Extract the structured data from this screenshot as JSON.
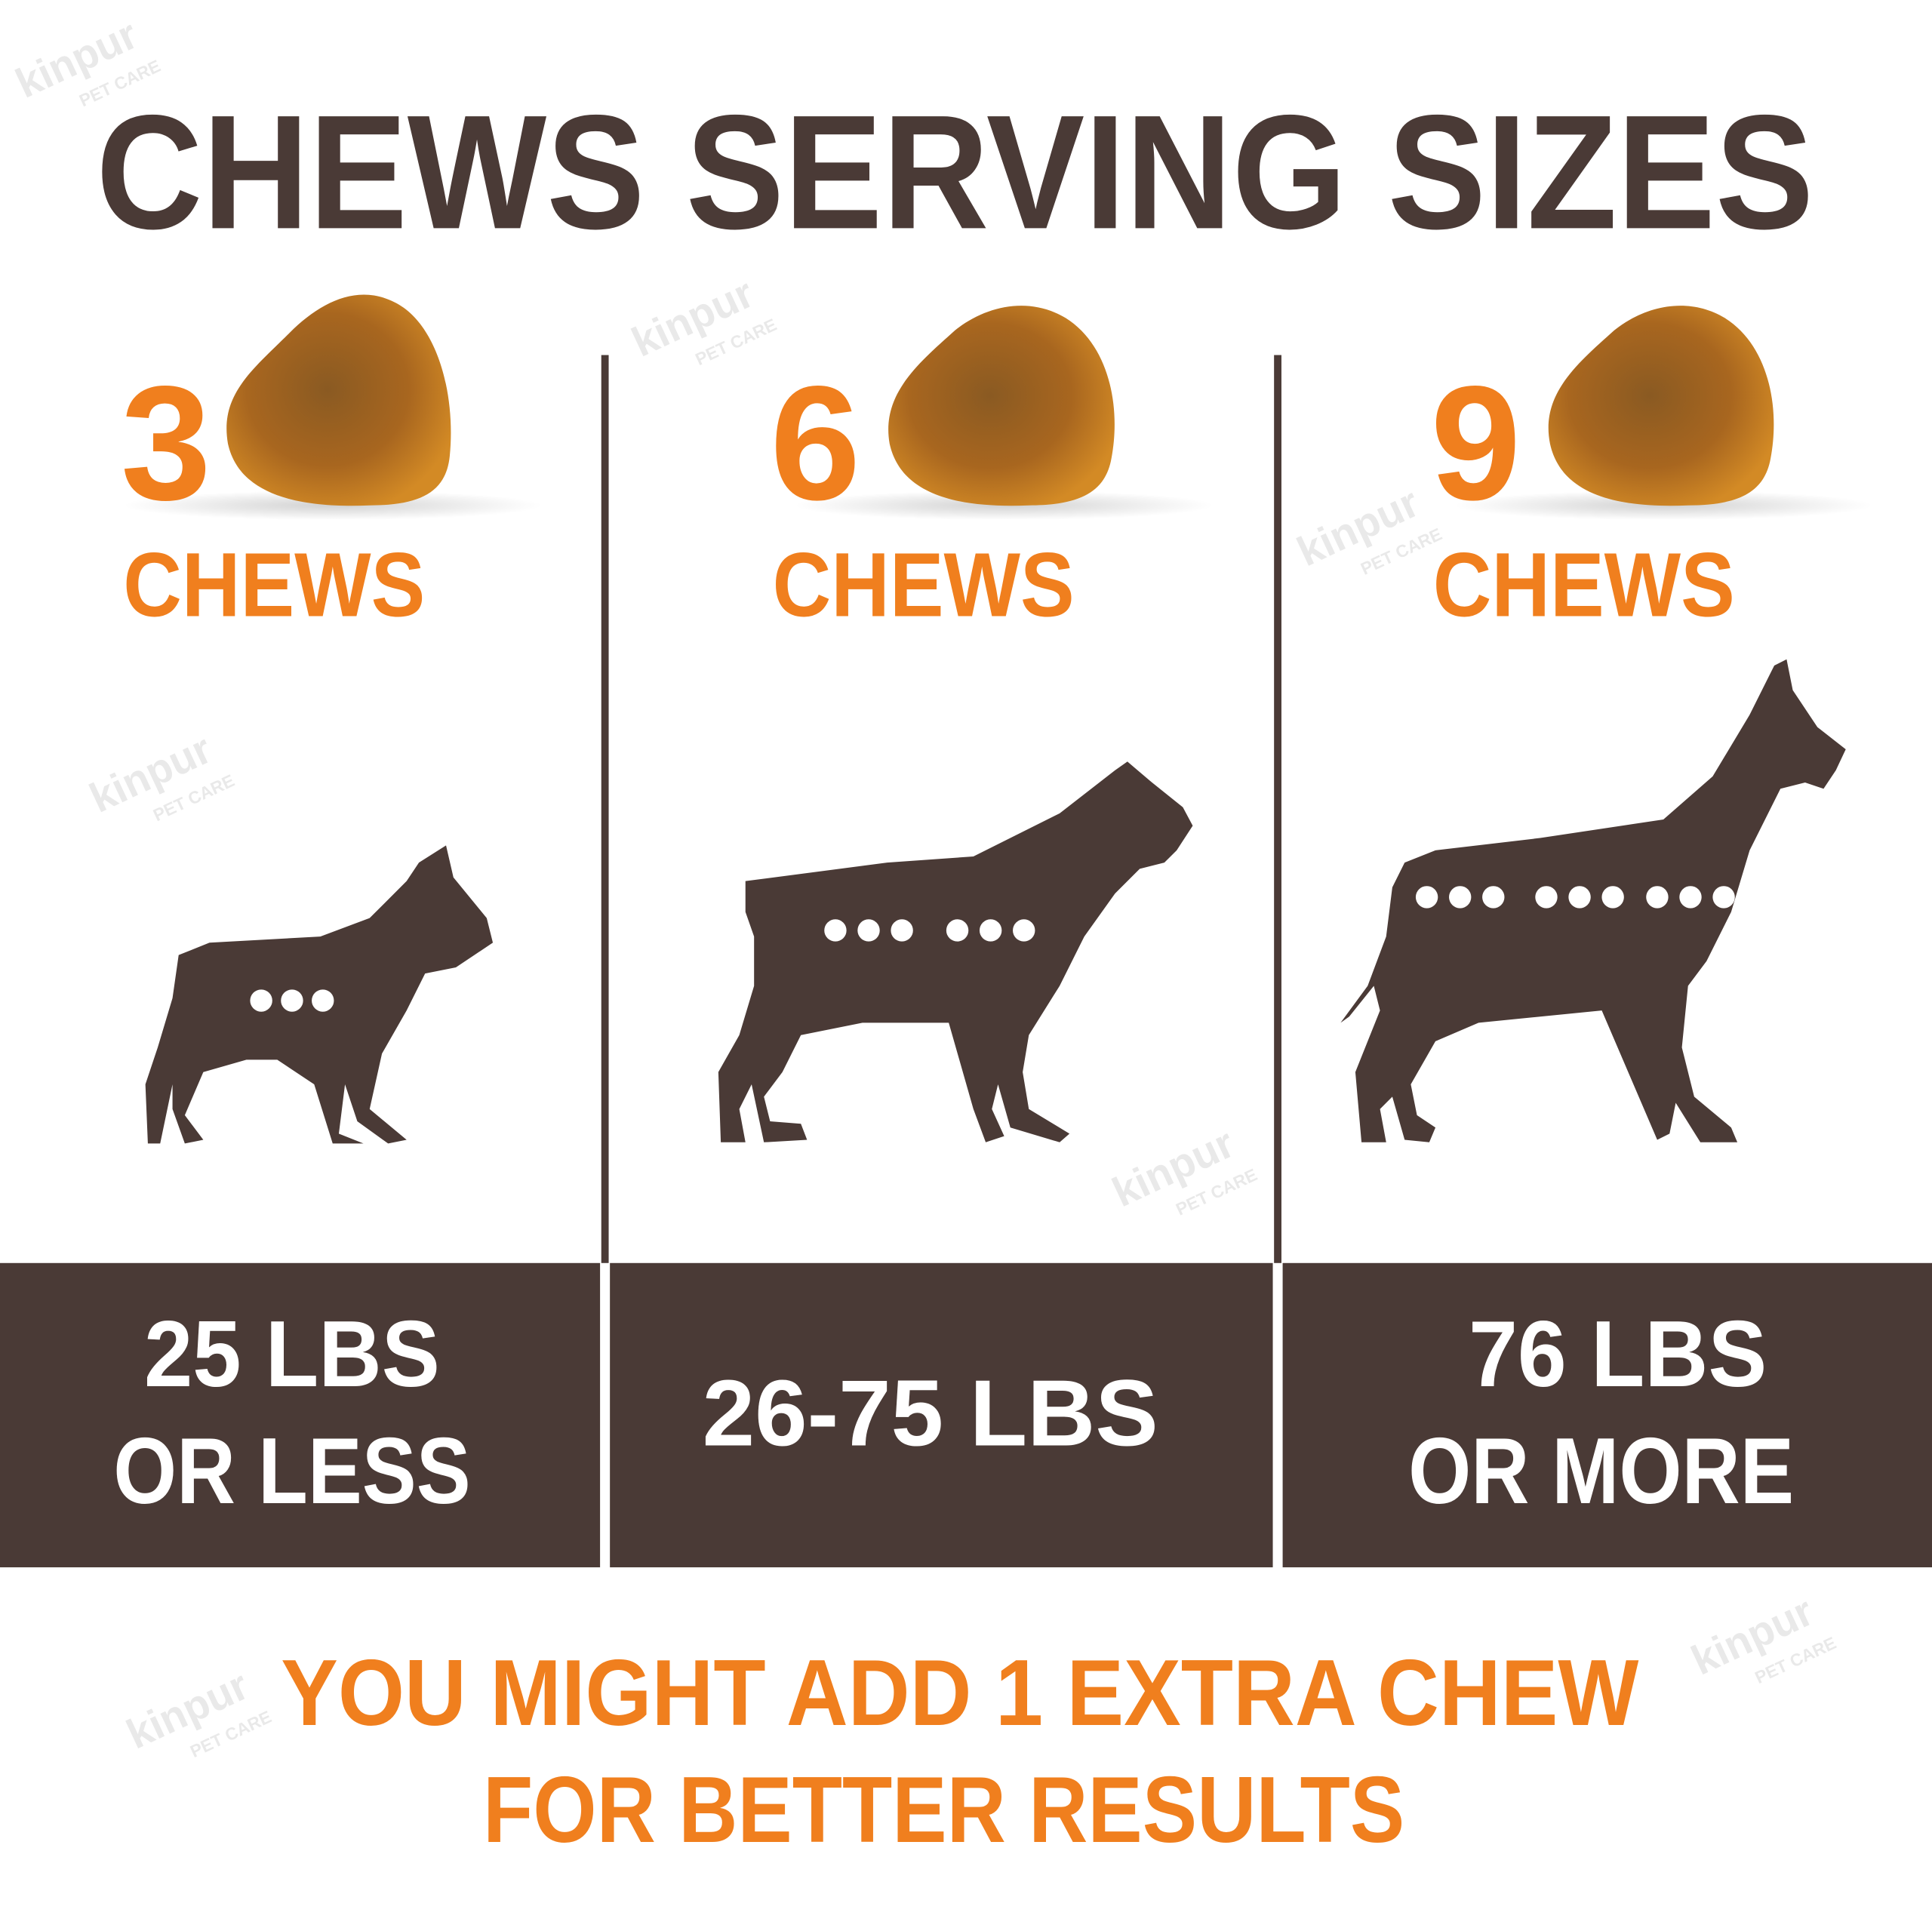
{
  "title": "CHEWS SERVING SIZES",
  "colors": {
    "brown": "#4a3a36",
    "orange": "#f07f1e",
    "white": "#ffffff"
  },
  "columns": [
    {
      "count": "3",
      "unit": "CHEWS",
      "weight_line1": "25 LBS",
      "weight_line2": "OR LESS",
      "dog": "small-dog-icon",
      "dots": 3
    },
    {
      "count": "6",
      "unit": "CHEWS",
      "weight_line1": "26-75 LBS",
      "weight_line2": "",
      "dog": "medium-dog-icon",
      "dots": 6
    },
    {
      "count": "9",
      "unit": "CHEWS",
      "weight_line1": "76 LBS",
      "weight_line2": "OR MORE",
      "dog": "large-dog-icon",
      "dots": 9
    }
  ],
  "footer": {
    "line1": "YOU MIGHT ADD 1 EXTRA CHEW",
    "line2": "FOR BETTER RESULTS"
  },
  "watermark": {
    "brand": "kinpur",
    "sub": "PET CARE"
  }
}
